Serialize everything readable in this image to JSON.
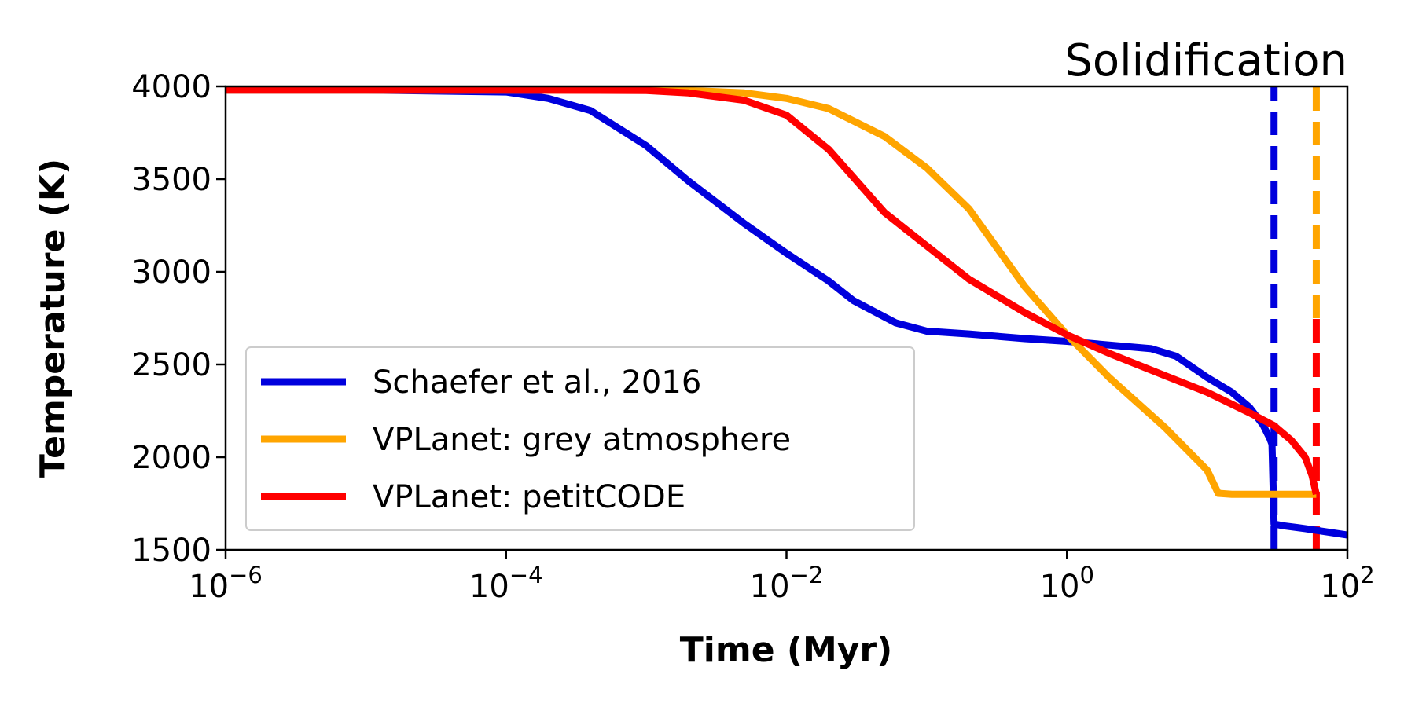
{
  "chart_data": {
    "type": "line",
    "title": "Solidification",
    "xlabel": "Time (Myr)",
    "ylabel": "Temperature (K)",
    "xscale": "log",
    "xlim": [
      1e-06,
      100
    ],
    "ylim": [
      1500,
      4000
    ],
    "xticks": [
      {
        "base": "10",
        "exp": "−6",
        "value": 1e-06
      },
      {
        "base": "10",
        "exp": "−4",
        "value": 0.0001
      },
      {
        "base": "10",
        "exp": "−2",
        "value": 0.01
      },
      {
        "base": "10",
        "exp": "0",
        "value": 1
      },
      {
        "base": "10",
        "exp": "2",
        "value": 100
      }
    ],
    "yticks": [
      1500,
      2000,
      2500,
      3000,
      3500,
      4000
    ],
    "grid": false,
    "legend_position": "lower-left",
    "series": [
      {
        "name": "Schaefer et al., 2016",
        "color": "#0000dd",
        "x": [
          1e-06,
          1e-05,
          0.0001,
          0.0002,
          0.0004,
          0.001,
          0.002,
          0.005,
          0.01,
          0.02,
          0.03,
          0.06,
          0.1,
          0.2,
          0.5,
          1,
          2,
          4,
          6,
          10,
          15,
          20,
          25,
          28,
          29,
          30,
          35,
          50,
          100
        ],
        "y": [
          3980,
          3980,
          3970,
          3935,
          3870,
          3680,
          3490,
          3260,
          3100,
          2950,
          2845,
          2725,
          2680,
          2665,
          2640,
          2625,
          2605,
          2585,
          2545,
          2430,
          2350,
          2270,
          2175,
          2100,
          2070,
          1640,
          1630,
          1615,
          1580
        ]
      },
      {
        "name": "VPLanet: grey atmosphere",
        "color": "#ffa500",
        "x": [
          1e-06,
          0.0001,
          0.001,
          0.002,
          0.005,
          0.01,
          0.02,
          0.05,
          0.1,
          0.2,
          0.5,
          1,
          2,
          5,
          10,
          12,
          15,
          20,
          40,
          60
        ],
        "y": [
          3980,
          3980,
          3980,
          3978,
          3965,
          3935,
          3880,
          3730,
          3560,
          3340,
          2920,
          2660,
          2430,
          2160,
          1930,
          1805,
          1800,
          1800,
          1800,
          1800
        ]
      },
      {
        "name": "VPLanet: petitCODE",
        "color": "#ff0000",
        "x": [
          1e-06,
          0.0001,
          0.001,
          0.002,
          0.005,
          0.01,
          0.02,
          0.05,
          0.1,
          0.2,
          0.5,
          1,
          2,
          5,
          10,
          20,
          30,
          40,
          50,
          56,
          60
        ],
        "y": [
          3980,
          3980,
          3978,
          3965,
          3925,
          3845,
          3660,
          3320,
          3140,
          2960,
          2780,
          2660,
          2560,
          2440,
          2350,
          2240,
          2170,
          2090,
          2000,
          1900,
          1800
        ]
      }
    ],
    "vertical_markers": [
      {
        "series": "Schaefer et al., 2016",
        "x": 30,
        "color": "#0000dd",
        "style": "dashed",
        "y_range": [
          1500,
          4000
        ]
      },
      {
        "series": "VPLanet: grey atmosphere",
        "x": 60,
        "color": "#ffa500",
        "style": "dashed",
        "y_range": [
          2750,
          4000
        ]
      },
      {
        "series": "VPLanet: petitCODE",
        "x": 60,
        "color": "#ff0000",
        "style": "dashed",
        "y_range": [
          1500,
          2750
        ]
      }
    ]
  }
}
